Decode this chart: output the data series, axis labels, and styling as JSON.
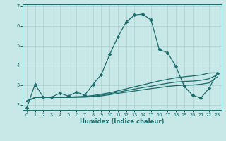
{
  "xlabel": "Humidex (Indice chaleur)",
  "bg_color": "#c8e8e8",
  "grid_color": "#aad0d0",
  "line_color": "#1a6b6b",
  "spine_color": "#1a6b6b",
  "xlim": [
    -0.5,
    23.5
  ],
  "ylim": [
    1.75,
    7.1
  ],
  "yticks": [
    2,
    3,
    4,
    5,
    6,
    7
  ],
  "xticks": [
    0,
    1,
    2,
    3,
    4,
    5,
    6,
    7,
    8,
    9,
    10,
    11,
    12,
    13,
    14,
    15,
    16,
    17,
    18,
    19,
    20,
    21,
    22,
    23
  ],
  "line1_x": [
    0,
    1,
    2,
    3,
    4,
    5,
    6,
    7,
    8,
    9,
    10,
    11,
    12,
    13,
    14,
    15,
    16,
    17,
    18,
    19,
    20,
    21,
    22,
    23
  ],
  "line1_y": [
    1.85,
    3.05,
    2.4,
    2.4,
    2.6,
    2.45,
    2.65,
    2.5,
    3.05,
    3.55,
    4.55,
    5.45,
    6.2,
    6.55,
    6.6,
    6.3,
    4.8,
    4.65,
    3.95,
    2.95,
    2.5,
    2.35,
    2.85,
    3.6
  ],
  "line2_x": [
    0,
    1,
    2,
    3,
    4,
    5,
    6,
    7,
    8,
    9,
    10,
    11,
    12,
    13,
    14,
    15,
    16,
    17,
    18,
    19,
    20,
    21,
    22,
    23
  ],
  "line2_y": [
    2.2,
    2.38,
    2.38,
    2.38,
    2.4,
    2.4,
    2.42,
    2.44,
    2.48,
    2.55,
    2.62,
    2.72,
    2.82,
    2.92,
    3.02,
    3.12,
    3.22,
    3.3,
    3.38,
    3.43,
    3.47,
    3.52,
    3.62,
    3.63
  ],
  "line3_x": [
    0,
    1,
    2,
    3,
    4,
    5,
    6,
    7,
    8,
    9,
    10,
    11,
    12,
    13,
    14,
    15,
    16,
    17,
    18,
    19,
    20,
    21,
    22,
    23
  ],
  "line3_y": [
    2.2,
    2.38,
    2.38,
    2.38,
    2.39,
    2.39,
    2.4,
    2.41,
    2.44,
    2.5,
    2.57,
    2.65,
    2.73,
    2.81,
    2.88,
    2.95,
    3.03,
    3.1,
    3.16,
    3.19,
    3.21,
    3.25,
    3.33,
    3.53
  ],
  "line4_x": [
    0,
    1,
    2,
    3,
    4,
    5,
    6,
    7,
    8,
    9,
    10,
    11,
    12,
    13,
    14,
    15,
    16,
    17,
    18,
    19,
    20,
    21,
    22,
    23
  ],
  "line4_y": [
    2.2,
    2.38,
    2.38,
    2.38,
    2.38,
    2.38,
    2.39,
    2.4,
    2.42,
    2.46,
    2.52,
    2.59,
    2.65,
    2.71,
    2.77,
    2.83,
    2.88,
    2.94,
    2.98,
    3.0,
    3.01,
    3.05,
    3.12,
    3.42
  ]
}
